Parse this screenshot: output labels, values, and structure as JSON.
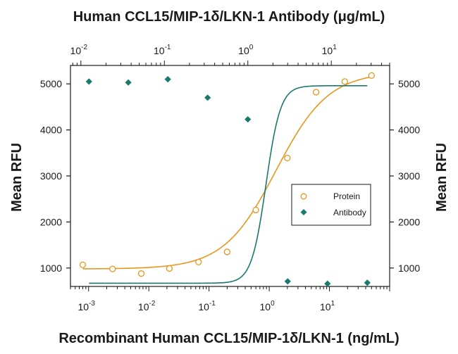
{
  "chart_data": {
    "type": "scatter",
    "top_title": "Human CCL15/MIP-1δ/LKN-1 Antibody (μg/mL)",
    "xlabel": "Recombinant Human CCL15/MIP-1δ/LKN-1 (ng/mL)",
    "ylabel_left": "Mean RFU",
    "ylabel_right": "Mean RFU",
    "x_scale": "log",
    "x_bottom_range": [
      0.0005,
      100
    ],
    "x_top_range": [
      0.0075,
      50
    ],
    "y_range": [
      600,
      5400
    ],
    "y_ticks": [
      1000,
      2000,
      3000,
      4000,
      5000
    ],
    "x_bottom_ticks": [
      {
        "value": 0.001,
        "base": "10",
        "exp": "-3"
      },
      {
        "value": 0.01,
        "base": "10",
        "exp": "-2"
      },
      {
        "value": 0.1,
        "base": "10",
        "exp": "-1"
      },
      {
        "value": 1,
        "base": "10",
        "exp": "0"
      },
      {
        "value": 10,
        "base": "10",
        "exp": "1"
      }
    ],
    "x_top_ticks": [
      {
        "value": 0.01,
        "base": "10",
        "exp": "-2"
      },
      {
        "value": 0.1,
        "base": "10",
        "exp": "-1"
      },
      {
        "value": 1,
        "base": "10",
        "exp": "0"
      },
      {
        "value": 10,
        "base": "10",
        "exp": "1"
      }
    ],
    "legend_position": "right-center",
    "series": [
      {
        "name": "Protein",
        "axis": "bottom",
        "marker": "open-circle",
        "color": "#e8961e",
        "x": [
          0.0008,
          0.0025,
          0.0075,
          0.022,
          0.067,
          0.2,
          0.6,
          2.0,
          6.0,
          18,
          50
        ],
        "y": [
          1070,
          980,
          880,
          990,
          1130,
          1350,
          2260,
          3390,
          4820,
          5050,
          5180
        ],
        "fit": {
          "bottom": 980,
          "top": 5260,
          "ec50": 1.3,
          "hill": 1.0
        }
      },
      {
        "name": "Antibody",
        "axis": "top",
        "marker": "filled-diamond",
        "color": "#1a7a6e",
        "x": [
          0.0125,
          0.037,
          0.11,
          0.33,
          1.0,
          3.0,
          9.0,
          27
        ],
        "y": [
          5050,
          5030,
          5100,
          4700,
          4230,
          710,
          660,
          680
        ],
        "fit": {
          "bottom": 670,
          "top": 4960,
          "ec50": 1.65,
          "hill": 5.0
        }
      }
    ]
  }
}
